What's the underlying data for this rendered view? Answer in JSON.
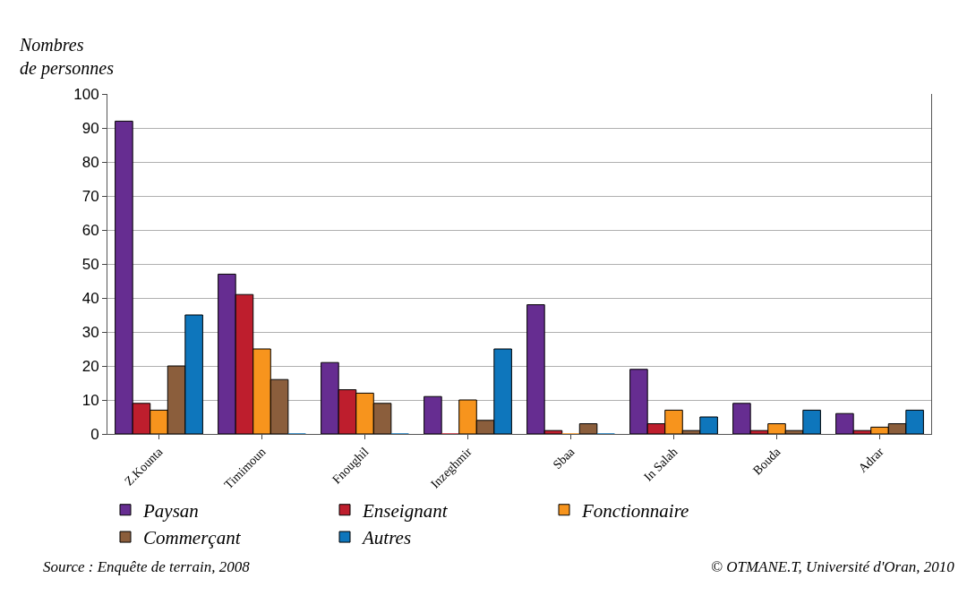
{
  "chart_data": {
    "type": "bar",
    "ylabel": "Nombres\nde personnes",
    "categories": [
      "Z.Kounta",
      "Timimoun",
      "Fnoughil",
      "Inzeghmir",
      "Sbaa",
      "In Salah",
      "Bouda",
      "Adrar"
    ],
    "series": [
      {
        "name": "Paysan",
        "color": "#662d91",
        "values": [
          92,
          47,
          21,
          11,
          38,
          19,
          9,
          6
        ]
      },
      {
        "name": "Enseignant",
        "color": "#be1e2d",
        "values": [
          9,
          41,
          13,
          0,
          1,
          3,
          1,
          1
        ]
      },
      {
        "name": "Fonctionnaire",
        "color": "#f7941d",
        "values": [
          7,
          25,
          12,
          10,
          0,
          7,
          3,
          2
        ]
      },
      {
        "name": "Commerçant",
        "color": "#8b5e3c",
        "values": [
          20,
          16,
          9,
          4,
          3,
          1,
          1,
          3
        ]
      },
      {
        "name": "Autres",
        "color": "#0e76bc",
        "values": [
          35,
          0,
          0,
          25,
          0,
          5,
          7,
          7
        ]
      }
    ],
    "ylim": [
      0,
      100
    ],
    "yticks": [
      0,
      10,
      20,
      30,
      40,
      50,
      60,
      70,
      80,
      90,
      100
    ],
    "grid": "y",
    "legend": "bottom left",
    "annotations": [
      "Source : Enquête de terrain, 2008",
      "© OTMANE.T, Université d'Oran, 2010"
    ]
  }
}
